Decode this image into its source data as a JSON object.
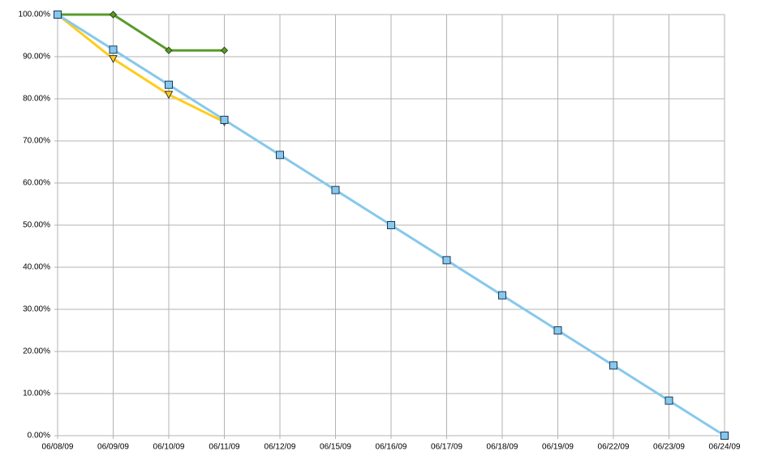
{
  "chart_data": {
    "type": "line",
    "categories": [
      "06/08/09",
      "06/09/09",
      "06/10/09",
      "06/11/09",
      "06/12/09",
      "06/15/09",
      "06/16/09",
      "06/17/09",
      "06/18/09",
      "06/19/09",
      "06/22/09",
      "06/23/09",
      "06/24/09"
    ],
    "series": [
      {
        "color": "#87c8ec",
        "marker": "square",
        "values": [
          100,
          91.67,
          83.33,
          75,
          66.67,
          58.33,
          50,
          41.67,
          33.33,
          25,
          16.67,
          8.33,
          0
        ]
      },
      {
        "color": "#ffcc1a",
        "marker": "triangle-down",
        "values": [
          100,
          89.5,
          81,
          74.5,
          null,
          null,
          null,
          null,
          null,
          null,
          null,
          null,
          null
        ]
      },
      {
        "color": "#5a9a2c",
        "marker": "diamond",
        "values": [
          100,
          100,
          91.5,
          91.5,
          null,
          null,
          null,
          null,
          null,
          null,
          null,
          null,
          null
        ]
      }
    ],
    "ylim": [
      0,
      100
    ],
    "yticks": [
      {
        "value": 0,
        "label": "0.00%"
      },
      {
        "value": 10,
        "label": "10.00%"
      },
      {
        "value": 20,
        "label": "20.00%"
      },
      {
        "value": 30,
        "label": "30.00%"
      },
      {
        "value": 40,
        "label": "40.00%"
      },
      {
        "value": 50,
        "label": "50.00%"
      },
      {
        "value": 60,
        "label": "60.00%"
      },
      {
        "value": 70,
        "label": "70.00%"
      },
      {
        "value": 80,
        "label": "80.00%"
      },
      {
        "value": 90,
        "label": "90.00%"
      },
      {
        "value": 100,
        "label": "100.00%"
      }
    ],
    "grid": true
  }
}
